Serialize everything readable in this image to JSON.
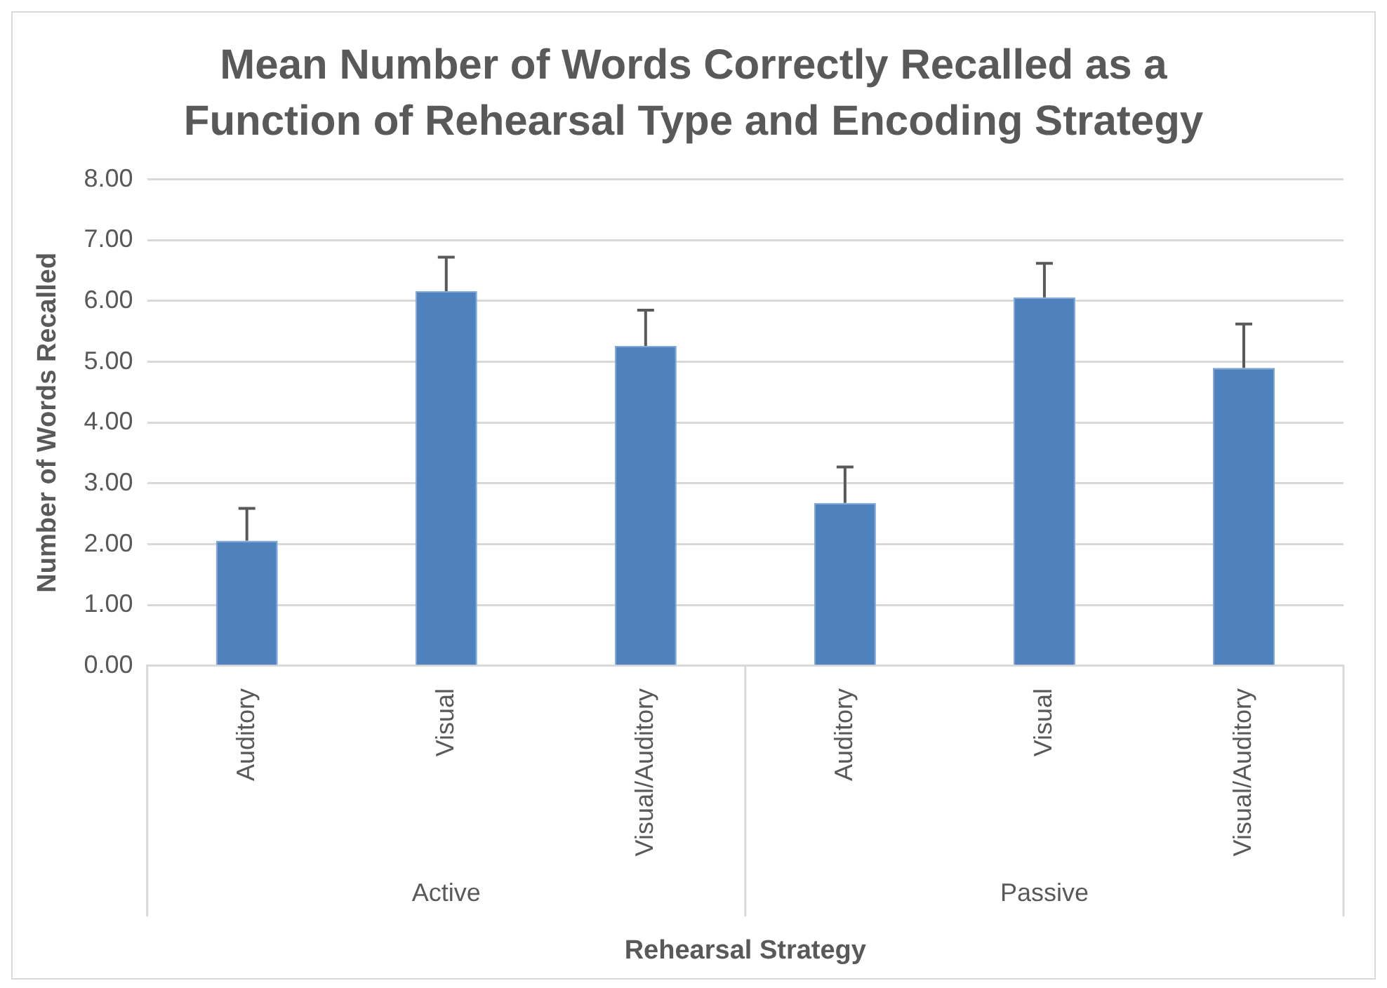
{
  "chart_data": {
    "type": "bar",
    "title": "Mean Number of Words Correctly Recalled as a Function of Rehearsal Type and Encoding Strategy",
    "xlabel": "Rehearsal Strategy",
    "ylabel": "Number of Words Recalled",
    "categories": [
      "Auditory",
      "Visual",
      "Visual/Auditory",
      "Auditory",
      "Visual",
      "Visual/Auditory"
    ],
    "values": [
      2.06,
      6.16,
      5.26,
      2.68,
      6.06,
      4.9
    ],
    "errors": [
      [
        2.06,
        2.59
      ],
      [
        6.16,
        6.72
      ],
      [
        5.26,
        5.85
      ],
      [
        2.68,
        3.27
      ],
      [
        6.06,
        6.62
      ],
      [
        4.9,
        5.62
      ]
    ],
    "color": "#4f81bd",
    "ylim": [
      0,
      8
    ],
    "yticks": [
      {
        "value": 0,
        "label": "0.00"
      },
      {
        "value": 1,
        "label": "1.00"
      },
      {
        "value": 2,
        "label": "2.00"
      },
      {
        "value": 3,
        "label": "3.00"
      },
      {
        "value": 4,
        "label": "4.00"
      },
      {
        "value": 5,
        "label": "5.00"
      },
      {
        "value": 6,
        "label": "6.00"
      },
      {
        "value": 7,
        "label": "7.00"
      },
      {
        "value": 8,
        "label": "8.00"
      }
    ],
    "grid": "y",
    "annotations": [
      "Active",
      "Passive"
    ]
  }
}
